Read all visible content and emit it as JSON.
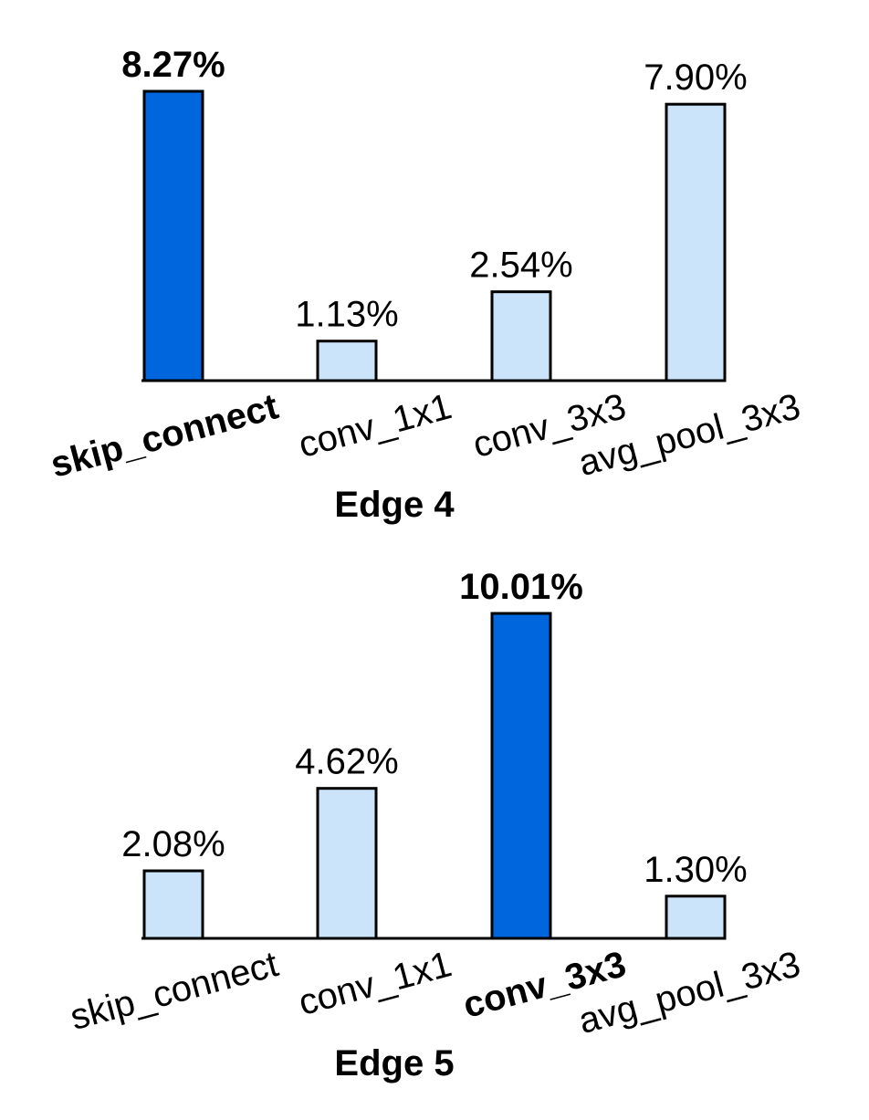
{
  "chart_data": [
    {
      "type": "bar",
      "title": "Edge 4",
      "categories": [
        "skip_connect",
        "conv_1x1",
        "conv_3x3",
        "avg_pool_3x3"
      ],
      "values": [
        8.27,
        1.13,
        2.54,
        7.9
      ],
      "value_labels": [
        "8.27%",
        "1.13%",
        "2.54%",
        "7.90%"
      ],
      "colors": [
        "#0066dd",
        "#cce4fa",
        "#cce4fa",
        "#cce4fa"
      ],
      "highlight_color": "#0066dd"
    },
    {
      "type": "bar",
      "title": "Edge 5",
      "categories": [
        "skip_connect",
        "conv_1x1",
        "conv_3x3",
        "avg_pool_3x3"
      ],
      "values": [
        2.08,
        4.62,
        10.01,
        1.3
      ],
      "value_labels": [
        "2.08%",
        "4.62%",
        "10.01%",
        "1.30%"
      ],
      "colors": [
        "#cce4fa",
        "#cce4fa",
        "#0066dd",
        "#cce4fa"
      ],
      "highlight_color": "#0066dd"
    }
  ]
}
